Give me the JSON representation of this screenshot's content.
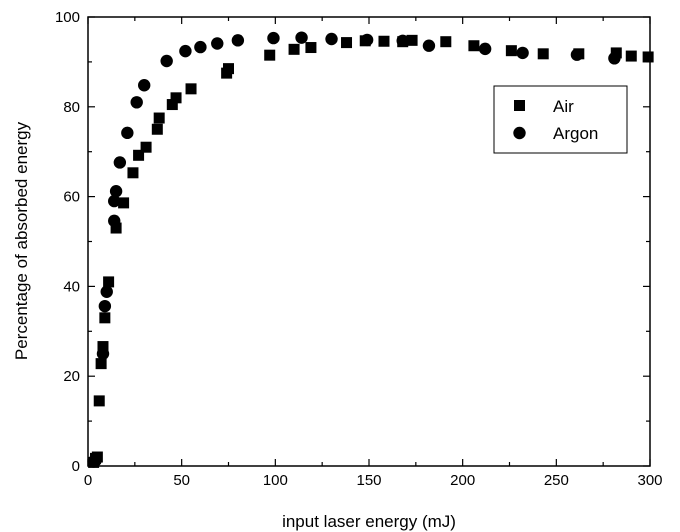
{
  "chart_data": {
    "type": "scatter",
    "title": "",
    "xlabel": "input laser energy (mJ)",
    "ylabel": "Percentage of absorbed energy",
    "xlim": [
      0,
      300
    ],
    "ylim": [
      0,
      100
    ],
    "xticks": [
      0,
      50,
      100,
      150,
      200,
      250,
      300
    ],
    "yticks": [
      0,
      20,
      40,
      60,
      80,
      100
    ],
    "grid": false,
    "legend_position": "top-right",
    "series": [
      {
        "name": "Air",
        "marker": "square",
        "color": "#000000",
        "points": [
          [
            3,
            0.8
          ],
          [
            4,
            1.7
          ],
          [
            5,
            2.0
          ],
          [
            6,
            14.5
          ],
          [
            7,
            22.8
          ],
          [
            8,
            26.6
          ],
          [
            9,
            33.0
          ],
          [
            11,
            41.0
          ],
          [
            15,
            53.0
          ],
          [
            19,
            58.6
          ],
          [
            24,
            65.3
          ],
          [
            27,
            69.2
          ],
          [
            31,
            71.0
          ],
          [
            37,
            75.0
          ],
          [
            38,
            77.5
          ],
          [
            45,
            80.5
          ],
          [
            47,
            82.0
          ],
          [
            55,
            84.0
          ],
          [
            74,
            87.5
          ],
          [
            75,
            88.5
          ],
          [
            97,
            91.5
          ],
          [
            110,
            92.8
          ],
          [
            119,
            93.2
          ],
          [
            138,
            94.3
          ],
          [
            148,
            94.7
          ],
          [
            158,
            94.6
          ],
          [
            168,
            94.5
          ],
          [
            173,
            94.8
          ],
          [
            191,
            94.5
          ],
          [
            206,
            93.6
          ],
          [
            226,
            92.5
          ],
          [
            243,
            91.8
          ],
          [
            262,
            91.8
          ],
          [
            282,
            92.0
          ],
          [
            290,
            91.3
          ],
          [
            299,
            91.1
          ]
        ]
      },
      {
        "name": "Argon",
        "marker": "circle",
        "color": "#000000",
        "points": [
          [
            3,
            1.0
          ],
          [
            4,
            1.2
          ],
          [
            8,
            25.0
          ],
          [
            9,
            35.6
          ],
          [
            10,
            38.8
          ],
          [
            14,
            54.6
          ],
          [
            15,
            61.2
          ],
          [
            14,
            59.0
          ],
          [
            17,
            67.6
          ],
          [
            21,
            74.2
          ],
          [
            26,
            81.0
          ],
          [
            30,
            84.8
          ],
          [
            42,
            90.2
          ],
          [
            52,
            92.4
          ],
          [
            60,
            93.3
          ],
          [
            69,
            94.1
          ],
          [
            80,
            94.8
          ],
          [
            99,
            95.3
          ],
          [
            114,
            95.4
          ],
          [
            130,
            95.1
          ],
          [
            149,
            94.9
          ],
          [
            168,
            94.7
          ],
          [
            182,
            93.6
          ],
          [
            212,
            92.9
          ],
          [
            232,
            92.0
          ],
          [
            261,
            91.6
          ],
          [
            281,
            90.8
          ]
        ]
      }
    ]
  }
}
